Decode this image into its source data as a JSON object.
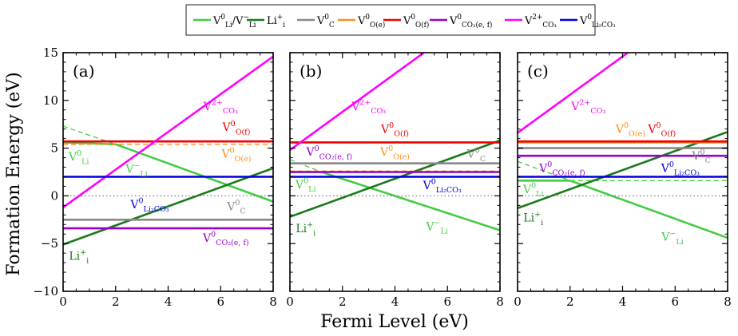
{
  "figure": {
    "ylabel": "Formation Energy (eV)",
    "xlabel": "Fermi Level (eV)",
    "legend": [
      {
        "main": "V",
        "sup": "0",
        "sub": "Li",
        "main2": "/V",
        "sup2": "−",
        "sub2": "Li",
        "color": "#44cc44",
        "dashed": false
      },
      {
        "main": "Li",
        "sup": "+",
        "sub": "i",
        "color": "#1a7a1a",
        "dashed": false
      },
      {
        "main": "V",
        "sup": "0",
        "sub": "C",
        "color": "#888888",
        "dashed": false
      },
      {
        "main": "V",
        "sup": "0",
        "sub": "O(e)",
        "color": "#ff8c1a",
        "dashed": false
      },
      {
        "main": "V",
        "sup": "0",
        "sub": "O(f)",
        "color": "#ee0000",
        "dashed": false
      },
      {
        "main": "V",
        "sup": "0",
        "sub": "CO₂(e, f)",
        "color": "#9900cc",
        "dashed": false
      },
      {
        "main": "V",
        "sup": "2+",
        "sub": "CO₃",
        "color": "#ff00ff",
        "dashed": false
      },
      {
        "main": "V",
        "sup": "0",
        "sub": "Li₂CO₃",
        "color": "#0000dd",
        "dashed": false
      }
    ]
  },
  "chart_data": [
    {
      "type": "line",
      "panel_label": "(a)",
      "xlim": [
        0,
        8
      ],
      "ylim": [
        -10,
        15
      ],
      "xticks": [
        0,
        2,
        4,
        6,
        8
      ],
      "yticks": [
        -10,
        -5,
        0,
        5,
        10,
        15
      ],
      "series": [
        {
          "name": "V0_Li/V-_Li (V0 Li)",
          "color": "#44cc44",
          "points": [
            [
              0,
              5.6
            ],
            [
              2,
              5.4
            ]
          ]
        },
        {
          "name": "V0_Li/V-_Li (V- Li)",
          "color": "#44cc44",
          "points": [
            [
              2,
              5.4
            ],
            [
              8,
              -0.6
            ]
          ]
        },
        {
          "name": "V0_Li/V-_Li (dashed)",
          "color": "#44cc44",
          "dashed": true,
          "points": [
            [
              0,
              7.3
            ],
            [
              2,
              5.4
            ]
          ]
        },
        {
          "name": "Li+_i",
          "color": "#1a7a1a",
          "points": [
            [
              0,
              -5.1
            ],
            [
              8,
              2.9
            ]
          ]
        },
        {
          "name": "V0_C",
          "color": "#888888",
          "points": [
            [
              0,
              -2.5
            ],
            [
              8,
              -2.5
            ]
          ]
        },
        {
          "name": "V0_O(e)",
          "color": "#ff8c1a",
          "dashed": true,
          "points": [
            [
              0,
              5.4
            ],
            [
              8,
              5.4
            ]
          ]
        },
        {
          "name": "V0_O(f)",
          "color": "#ee0000",
          "points": [
            [
              0,
              5.7
            ],
            [
              8,
              5.7
            ]
          ]
        },
        {
          "name": "V0_CO2(e,f)",
          "color": "#9900cc",
          "points": [
            [
              0,
              -3.4
            ],
            [
              8,
              -3.4
            ]
          ]
        },
        {
          "name": "V2+_CO3",
          "color": "#ff00ff",
          "points": [
            [
              0,
              -1.2
            ],
            [
              8,
              14.6
            ]
          ]
        },
        {
          "name": "V0_Li2CO3",
          "color": "#0000dd",
          "points": [
            [
              0,
              2.0
            ],
            [
              8,
              2.0
            ]
          ]
        },
        {
          "name": "zero",
          "color": "#777777",
          "dotted": true,
          "points": [
            [
              0,
              0
            ],
            [
              8,
              0
            ]
          ]
        }
      ],
      "annotations": [
        {
          "main": "V",
          "sup": "2+",
          "sub": "CO₃",
          "color": "#ff00ff",
          "x": 6.0,
          "y": 9.0
        },
        {
          "main": "V",
          "sup": "0",
          "sub": "O(f)",
          "color": "#ee0000",
          "x": 6.6,
          "y": 6.8
        },
        {
          "main": "V",
          "sup": "0",
          "sub": "O(e)",
          "color": "#ff8c1a",
          "x": 6.6,
          "y": 4.0
        },
        {
          "main": "V",
          "sup": "0",
          "sub": "Li",
          "color": "#44cc44",
          "x": 0.6,
          "y": 3.7
        },
        {
          "main": "V",
          "sup": "−",
          "sub": "Li",
          "color": "#44cc44",
          "x": 2.8,
          "y": 2.4
        },
        {
          "main": "V",
          "sup": "0",
          "sub": "Li₂CO₃",
          "color": "#0000dd",
          "x": 3.3,
          "y": -1.3
        },
        {
          "main": "V",
          "sup": "0",
          "sub": "C",
          "color": "#888888",
          "x": 6.6,
          "y": -1.5
        },
        {
          "main": "V",
          "sup": "0",
          "sub": "CO₂(e, f)",
          "color": "#9900cc",
          "x": 6.2,
          "y": -4.8
        },
        {
          "main": "Li",
          "sup": "+",
          "sub": "i",
          "color": "#1a7a1a",
          "x": 0.6,
          "y": -6.7
        }
      ]
    },
    {
      "type": "line",
      "panel_label": "(b)",
      "xlim": [
        0,
        8
      ],
      "ylim": [
        -10,
        15
      ],
      "xticks": [
        0,
        2,
        4,
        6,
        8
      ],
      "yticks": [
        -10,
        -5,
        0,
        5,
        10,
        15
      ],
      "series": [
        {
          "name": "V0_Li/V-_Li (V0 Li)",
          "color": "#44cc44",
          "points": [
            [
              0,
              2.5
            ],
            [
              1.2,
              2.5
            ]
          ]
        },
        {
          "name": "V0_Li/V-_Li (V- Li)",
          "color": "#44cc44",
          "points": [
            [
              1.2,
              2.5
            ],
            [
              8,
              -3.6
            ]
          ]
        },
        {
          "name": "V0_Li/V-_Li (dashed)",
          "color": "#44cc44",
          "dashed": true,
          "points": [
            [
              0,
              3.8
            ],
            [
              1.2,
              2.5
            ]
          ]
        },
        {
          "name": "Li+_i",
          "color": "#1a7a1a",
          "points": [
            [
              0,
              -2.2
            ],
            [
              8,
              5.8
            ]
          ]
        },
        {
          "name": "V0_C",
          "color": "#888888",
          "points": [
            [
              0,
              3.4
            ],
            [
              8,
              3.4
            ]
          ]
        },
        {
          "name": "V0_O(e)",
          "color": "#ff8c1a",
          "dashed": true,
          "points": [
            [
              0,
              2.6
            ],
            [
              8,
              2.6
            ]
          ]
        },
        {
          "name": "V0_O(f)",
          "color": "#ee0000",
          "points": [
            [
              0,
              5.6
            ],
            [
              8,
              5.6
            ]
          ]
        },
        {
          "name": "V0_CO2(e,f)",
          "color": "#9900cc",
          "points": [
            [
              0,
              2.5
            ],
            [
              8,
              2.5
            ]
          ]
        },
        {
          "name": "V2+_CO3",
          "color": "#ff00ff",
          "points": [
            [
              0,
              4.8
            ],
            [
              8,
              20.8
            ]
          ]
        },
        {
          "name": "V0_Li2CO3",
          "color": "#0000dd",
          "points": [
            [
              0,
              2.0
            ],
            [
              8,
              2.0
            ]
          ]
        },
        {
          "name": "zero",
          "color": "#777777",
          "dotted": true,
          "points": [
            [
              0,
              0
            ],
            [
              8,
              0
            ]
          ]
        }
      ],
      "annotations": [
        {
          "main": "V",
          "sup": "2+",
          "sub": "CO₃",
          "color": "#ff00ff",
          "x": 3.0,
          "y": 9.0
        },
        {
          "main": "V",
          "sup": "0",
          "sub": "O(f)",
          "color": "#ee0000",
          "x": 4.0,
          "y": 6.6
        },
        {
          "main": "V",
          "sup": "0",
          "sub": "CO₂(e, f)",
          "color": "#9900cc",
          "x": 1.5,
          "y": 4.2
        },
        {
          "main": "V",
          "sup": "0",
          "sub": "O(e)",
          "color": "#ff8c1a",
          "x": 4.0,
          "y": 4.2
        },
        {
          "main": "V",
          "sup": "0",
          "sub": "C",
          "color": "#888888",
          "x": 7.1,
          "y": 4.0
        },
        {
          "main": "V",
          "sup": "0",
          "sub": "Li",
          "color": "#44cc44",
          "x": 0.6,
          "y": 0.8
        },
        {
          "main": "V",
          "sup": "0",
          "sub": "Li₂CO₃",
          "color": "#0000dd",
          "x": 5.8,
          "y": 0.7
        },
        {
          "main": "Li",
          "sup": "+",
          "sub": "i",
          "color": "#1a7a1a",
          "x": 0.6,
          "y": -3.8
        },
        {
          "main": "V",
          "sup": "−",
          "sub": "Li",
          "color": "#44cc44",
          "x": 5.6,
          "y": -3.6
        }
      ]
    },
    {
      "type": "line",
      "panel_label": "(c)",
      "xlim": [
        0,
        8
      ],
      "ylim": [
        -10,
        15
      ],
      "xticks": [
        0,
        2,
        4,
        6,
        8
      ],
      "yticks": [
        -10,
        -5,
        0,
        5,
        10,
        15
      ],
      "series": [
        {
          "name": "V0_Li/V-_Li (V0 Li)",
          "color": "#44cc44",
          "points": [
            [
              0,
              1.6
            ],
            [
              2,
              1.6
            ]
          ]
        },
        {
          "name": "V0_Li/V-_Li (V- Li)",
          "color": "#44cc44",
          "points": [
            [
              2,
              1.6
            ],
            [
              8,
              -4.4
            ]
          ]
        },
        {
          "name": "V0_Li/V-_Li (dashed)",
          "color": "#44cc44",
          "dashed": true,
          "points": [
            [
              0,
              3.6
            ],
            [
              2,
              1.6
            ]
          ]
        },
        {
          "name": "V0_Li/V-_Li (dashed ext)",
          "color": "#44cc44",
          "dashed": true,
          "points": [
            [
              2,
              1.6
            ],
            [
              8,
              1.6
            ]
          ]
        },
        {
          "name": "Li+_i",
          "color": "#1a7a1a",
          "points": [
            [
              0,
              -1.3
            ],
            [
              8,
              6.7
            ]
          ]
        },
        {
          "name": "V0_C",
          "color": "#888888",
          "points": [
            [
              0,
              5.0
            ],
            [
              8,
              5.0
            ]
          ]
        },
        {
          "name": "V0_O(e)",
          "color": "#ff8c1a",
          "points": [
            [
              0,
              5.6
            ],
            [
              8,
              5.6
            ]
          ]
        },
        {
          "name": "V0_O(f)",
          "color": "#ee0000",
          "points": [
            [
              0,
              5.7
            ],
            [
              8,
              5.7
            ]
          ]
        },
        {
          "name": "V0_CO2(e,f)",
          "color": "#9900cc",
          "points": [
            [
              0,
              4.2
            ],
            [
              8,
              4.2
            ]
          ]
        },
        {
          "name": "V2+_CO3",
          "color": "#ff00ff",
          "points": [
            [
              0,
              6.6
            ],
            [
              8,
              22.6
            ]
          ]
        },
        {
          "name": "V0_Li2CO3",
          "color": "#0000dd",
          "points": [
            [
              0,
              2.0
            ],
            [
              8,
              2.0
            ]
          ]
        },
        {
          "name": "zero",
          "color": "#777777",
          "dotted": true,
          "points": [
            [
              0,
              0
            ],
            [
              8,
              0
            ]
          ]
        }
      ],
      "annotations": [
        {
          "main": "V",
          "sup": "2+",
          "sub": "CO₃",
          "color": "#ff00ff",
          "x": 2.7,
          "y": 9.0
        },
        {
          "main": "V",
          "sup": "0",
          "sub": "O(e)",
          "color": "#ff8c1a",
          "x": 4.3,
          "y": 6.6
        },
        {
          "main": "V",
          "sup": "0",
          "sub": "O(f)",
          "color": "#ee0000",
          "x": 5.5,
          "y": 6.6
        },
        {
          "main": "V",
          "sup": "0",
          "sub": "C",
          "color": "#888888",
          "x": 7.0,
          "y": 3.8
        },
        {
          "main": "V",
          "sup": "0",
          "sub": "CO₂(e, f)",
          "color": "#9900cc",
          "x": 1.7,
          "y": 2.5
        },
        {
          "main": "V",
          "sup": "0",
          "sub": "Li₂CO₃",
          "color": "#0000dd",
          "x": 6.2,
          "y": 2.5
        },
        {
          "main": "V",
          "sup": "0",
          "sub": "Li",
          "color": "#44cc44",
          "x": 0.6,
          "y": 0.3
        },
        {
          "main": "Li",
          "sup": "+",
          "sub": "i",
          "color": "#1a7a1a",
          "x": 0.6,
          "y": -2.7
        },
        {
          "main": "V",
          "sup": "−",
          "sub": "Li",
          "color": "#44cc44",
          "x": 5.9,
          "y": -4.7
        }
      ]
    }
  ]
}
